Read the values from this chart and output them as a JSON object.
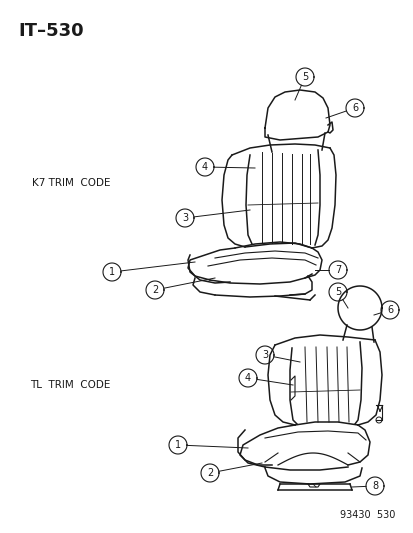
{
  "title": "IT–530",
  "background_color": "#ffffff",
  "line_color": "#1a1a1a",
  "label_k7": "K7 TRIM  CODE",
  "label_tl": "TL  TRIM  CODE",
  "footer": "93430  530",
  "figsize": [
    4.14,
    5.33
  ],
  "dpi": 100
}
